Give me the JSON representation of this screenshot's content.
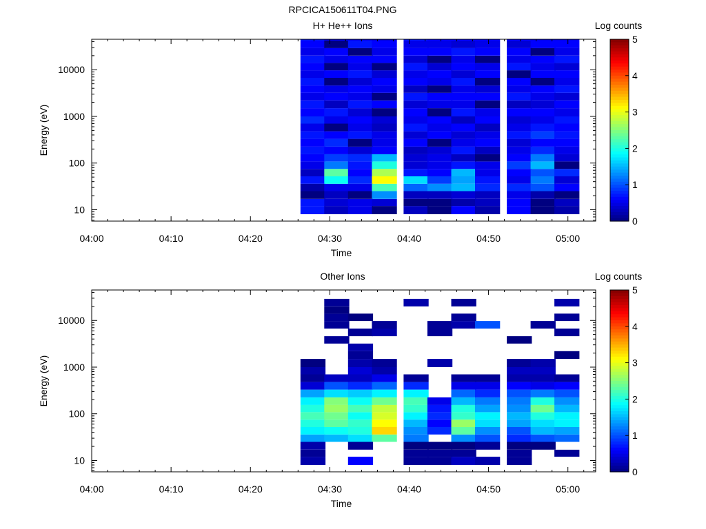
{
  "figure": {
    "title": "RPCICA150611T04.PNG"
  },
  "chart_data": [
    {
      "type": "heatmap",
      "title": "H+ He++ Ions",
      "xlabel": "Time",
      "ylabel": "Energy (eV)",
      "x_ticks": [
        "04:00",
        "04:10",
        "04:20",
        "04:30",
        "04:40",
        "04:50",
        "05:00"
      ],
      "y_ticks": [
        "10",
        "100",
        "1000",
        "10000"
      ],
      "y_scale": "log",
      "colorbar": {
        "label": "Log counts",
        "ticks": [
          "0",
          "1",
          "2",
          "3",
          "4",
          "5"
        ],
        "range": [
          0,
          5
        ],
        "colormap": "blue-cyan-yellow-red"
      },
      "time_columns": [
        "04:26",
        "04:29",
        "04:32",
        "04:35",
        "04:39",
        "04:42",
        "04:45",
        "04:48",
        "04:52",
        "04:55",
        "04:58"
      ],
      "energy_bins_eV": [
        8,
        12,
        17,
        25,
        36,
        52,
        75,
        108,
        155,
        225,
        330,
        480,
        700,
        1000,
        1500,
        2200,
        3200,
        4600,
        6700,
        9700,
        14000,
        20000,
        29000,
        42000
      ],
      "log_counts": [
        [
          0.7,
          0.3,
          0.5,
          0.0,
          0.3,
          0.0,
          0.6,
          0.2,
          0.6,
          0.0,
          0.2
        ],
        [
          0.7,
          0.4,
          0.5,
          0.4,
          0.0,
          0.0,
          0.2,
          0.3,
          0.6,
          0.0,
          0.3
        ],
        [
          0.0,
          0.3,
          0.0,
          1.3,
          0.3,
          0.3,
          0.4,
          0.3,
          0.5,
          0.2,
          0.0
        ],
        [
          0.2,
          0.5,
          0.5,
          2.2,
          1.1,
          1.3,
          1.5,
          0.8,
          0.8,
          1.0,
          0.6
        ],
        [
          0.7,
          1.9,
          0.8,
          3.1,
          1.7,
          0.9,
          1.4,
          0.7,
          0.5,
          1.2,
          0.4
        ],
        [
          0.3,
          2.3,
          0.6,
          2.7,
          0.7,
          0.6,
          1.5,
          0.5,
          0.6,
          1.0,
          0.8
        ],
        [
          0.5,
          1.2,
          0.7,
          2.0,
          0.4,
          0.5,
          0.7,
          0.5,
          0.9,
          1.5,
          0.0
        ],
        [
          0.6,
          0.9,
          0.8,
          1.5,
          0.4,
          0.5,
          0.3,
          0.0,
          0.6,
          1.2,
          0.4
        ],
        [
          0.7,
          0.6,
          0.4,
          0.6,
          0.3,
          0.4,
          0.7,
          0.3,
          0.5,
          0.8,
          0.5
        ],
        [
          0.6,
          0.8,
          0.0,
          0.5,
          0.6,
          0.0,
          0.5,
          0.6,
          0.4,
          0.6,
          0.6
        ],
        [
          0.7,
          0.6,
          0.7,
          0.5,
          0.4,
          0.6,
          0.4,
          0.5,
          0.7,
          0.9,
          0.7
        ],
        [
          0.5,
          0.0,
          0.5,
          0.3,
          0.7,
          0.5,
          0.6,
          0.3,
          0.5,
          0.7,
          0.6
        ],
        [
          0.8,
          0.5,
          0.6,
          0.4,
          0.5,
          0.6,
          0.3,
          0.6,
          0.4,
          0.5,
          0.7
        ],
        [
          0.6,
          0.7,
          0.4,
          0.0,
          0.6,
          0.0,
          0.7,
          0.5,
          0.6,
          0.6,
          0.5
        ],
        [
          0.7,
          0.3,
          0.7,
          0.6,
          0.4,
          0.5,
          0.5,
          0.0,
          0.3,
          0.4,
          0.6
        ],
        [
          0.5,
          0.6,
          0.5,
          0.0,
          0.7,
          0.6,
          0.6,
          0.6,
          0.7,
          0.5,
          0.4
        ],
        [
          0.6,
          0.5,
          0.6,
          0.5,
          0.3,
          0.0,
          0.5,
          0.4,
          0.5,
          0.6,
          0.7
        ],
        [
          0.7,
          0.0,
          0.4,
          0.6,
          0.6,
          0.5,
          0.7,
          0.0,
          0.6,
          0.0,
          0.5
        ],
        [
          0.5,
          0.6,
          0.7,
          0.4,
          0.5,
          0.6,
          0.4,
          0.6,
          0.0,
          0.6,
          0.6
        ],
        [
          0.6,
          0.0,
          0.5,
          0.0,
          0.7,
          0.4,
          0.6,
          0.5,
          0.7,
          0.5,
          0.4
        ],
        [
          0.7,
          0.5,
          0.6,
          0.6,
          0.4,
          0.0,
          0.5,
          0.0,
          0.5,
          0.6,
          0.7
        ],
        [
          0.5,
          0.6,
          0.0,
          0.5,
          0.6,
          0.6,
          0.7,
          0.6,
          0.6,
          0.0,
          0.5
        ],
        [
          0.6,
          0.0,
          0.7,
          0.6,
          0.5,
          0.5,
          0.4,
          0.5,
          0.4,
          0.6,
          0.6
        ],
        [
          0.7,
          0.5,
          0.5,
          0.4,
          0.7,
          0.6,
          0.6,
          0.6,
          0.6,
          0.5,
          0.5
        ]
      ]
    },
    {
      "type": "heatmap",
      "title": "Other Ions",
      "xlabel": "Time",
      "ylabel": "Energy (eV)",
      "x_ticks": [
        "04:00",
        "04:10",
        "04:20",
        "04:30",
        "04:40",
        "04:50",
        "05:00"
      ],
      "y_ticks": [
        "10",
        "100",
        "1000",
        "10000"
      ],
      "y_scale": "log",
      "colorbar": {
        "label": "Log counts",
        "ticks": [
          "0",
          "1",
          "2",
          "3",
          "4",
          "5"
        ],
        "range": [
          0,
          5
        ],
        "colormap": "blue-cyan-yellow-red"
      },
      "time_columns": [
        "04:26",
        "04:29",
        "04:32",
        "04:35",
        "04:39",
        "04:42",
        "04:45",
        "04:48",
        "04:52",
        "04:55",
        "04:58"
      ],
      "energy_bins_eV": [
        8,
        12,
        17,
        25,
        36,
        52,
        75,
        108,
        155,
        225,
        330,
        480,
        700,
        1000,
        1500,
        2200,
        3200,
        4600,
        6700,
        9700,
        14000,
        20000,
        29000,
        42000
      ],
      "log_counts": [
        [
          0.2,
          null,
          0.6,
          null,
          0.1,
          0.1,
          0.3,
          0.2,
          0.1,
          null,
          null
        ],
        [
          0.1,
          null,
          null,
          null,
          0.1,
          0.1,
          0.1,
          null,
          0.1,
          null,
          0.1
        ],
        [
          0.2,
          null,
          0.1,
          null,
          0.0,
          0.0,
          0.0,
          0.1,
          0.0,
          0.0,
          null
        ],
        [
          1.4,
          1.5,
          1.7,
          2.3,
          1.2,
          null,
          1.3,
          1.0,
          0.8,
          1.0,
          1.1
        ],
        [
          1.8,
          1.9,
          2.0,
          3.3,
          1.3,
          0.8,
          2.3,
          1.3,
          1.0,
          1.5,
          1.4
        ],
        [
          2.0,
          2.3,
          2.1,
          3.1,
          1.5,
          0.6,
          2.6,
          1.7,
          1.4,
          1.7,
          1.8
        ],
        [
          2.2,
          2.4,
          1.9,
          2.9,
          1.8,
          0.8,
          2.1,
          1.8,
          1.5,
          2.0,
          1.8
        ],
        [
          2.0,
          2.6,
          2.2,
          2.8,
          2.1,
          0.7,
          2.0,
          1.4,
          1.3,
          2.4,
          1.5
        ],
        [
          1.8,
          2.5,
          1.9,
          2.4,
          2.2,
          0.5,
          1.5,
          1.2,
          1.2,
          2.0,
          1.3
        ],
        [
          1.4,
          1.7,
          1.6,
          1.8,
          1.8,
          null,
          1.1,
          0.8,
          1.0,
          1.2,
          1.0
        ],
        [
          0.4,
          1.0,
          0.8,
          1.1,
          0.8,
          null,
          0.5,
          0.5,
          0.6,
          0.5,
          0.6
        ],
        [
          0.1,
          0.3,
          0.3,
          0.5,
          0.1,
          null,
          0.1,
          0.1,
          0.2,
          0.2,
          0.1
        ],
        [
          0.2,
          null,
          0.4,
          0.2,
          null,
          null,
          null,
          null,
          0.3,
          0.3,
          null
        ],
        [
          0.0,
          null,
          0.2,
          0.1,
          null,
          0.2,
          null,
          null,
          0.1,
          0.2,
          null
        ],
        [
          null,
          null,
          0.1,
          null,
          null,
          null,
          null,
          null,
          null,
          null,
          0.0
        ],
        [
          null,
          null,
          0.2,
          null,
          null,
          null,
          null,
          null,
          null,
          null,
          null
        ],
        [
          null,
          0.1,
          null,
          null,
          null,
          null,
          null,
          null,
          0.0,
          null,
          null
        ],
        [
          null,
          null,
          0.1,
          0.2,
          null,
          0.1,
          null,
          null,
          null,
          null,
          0.1
        ],
        [
          null,
          0.1,
          null,
          0.1,
          null,
          0.1,
          0.2,
          1.0,
          null,
          0.1,
          null
        ],
        [
          null,
          0.1,
          0.0,
          null,
          null,
          null,
          0.1,
          null,
          null,
          null,
          0.1
        ],
        [
          null,
          0.0,
          null,
          null,
          null,
          null,
          null,
          null,
          null,
          null,
          null
        ],
        [
          null,
          0.1,
          null,
          null,
          0.2,
          null,
          0.1,
          null,
          null,
          null,
          0.2
        ],
        [
          null,
          null,
          null,
          null,
          null,
          null,
          null,
          null,
          null,
          null,
          null
        ],
        [
          null,
          null,
          null,
          null,
          null,
          null,
          null,
          null,
          null,
          null,
          null
        ]
      ]
    }
  ]
}
